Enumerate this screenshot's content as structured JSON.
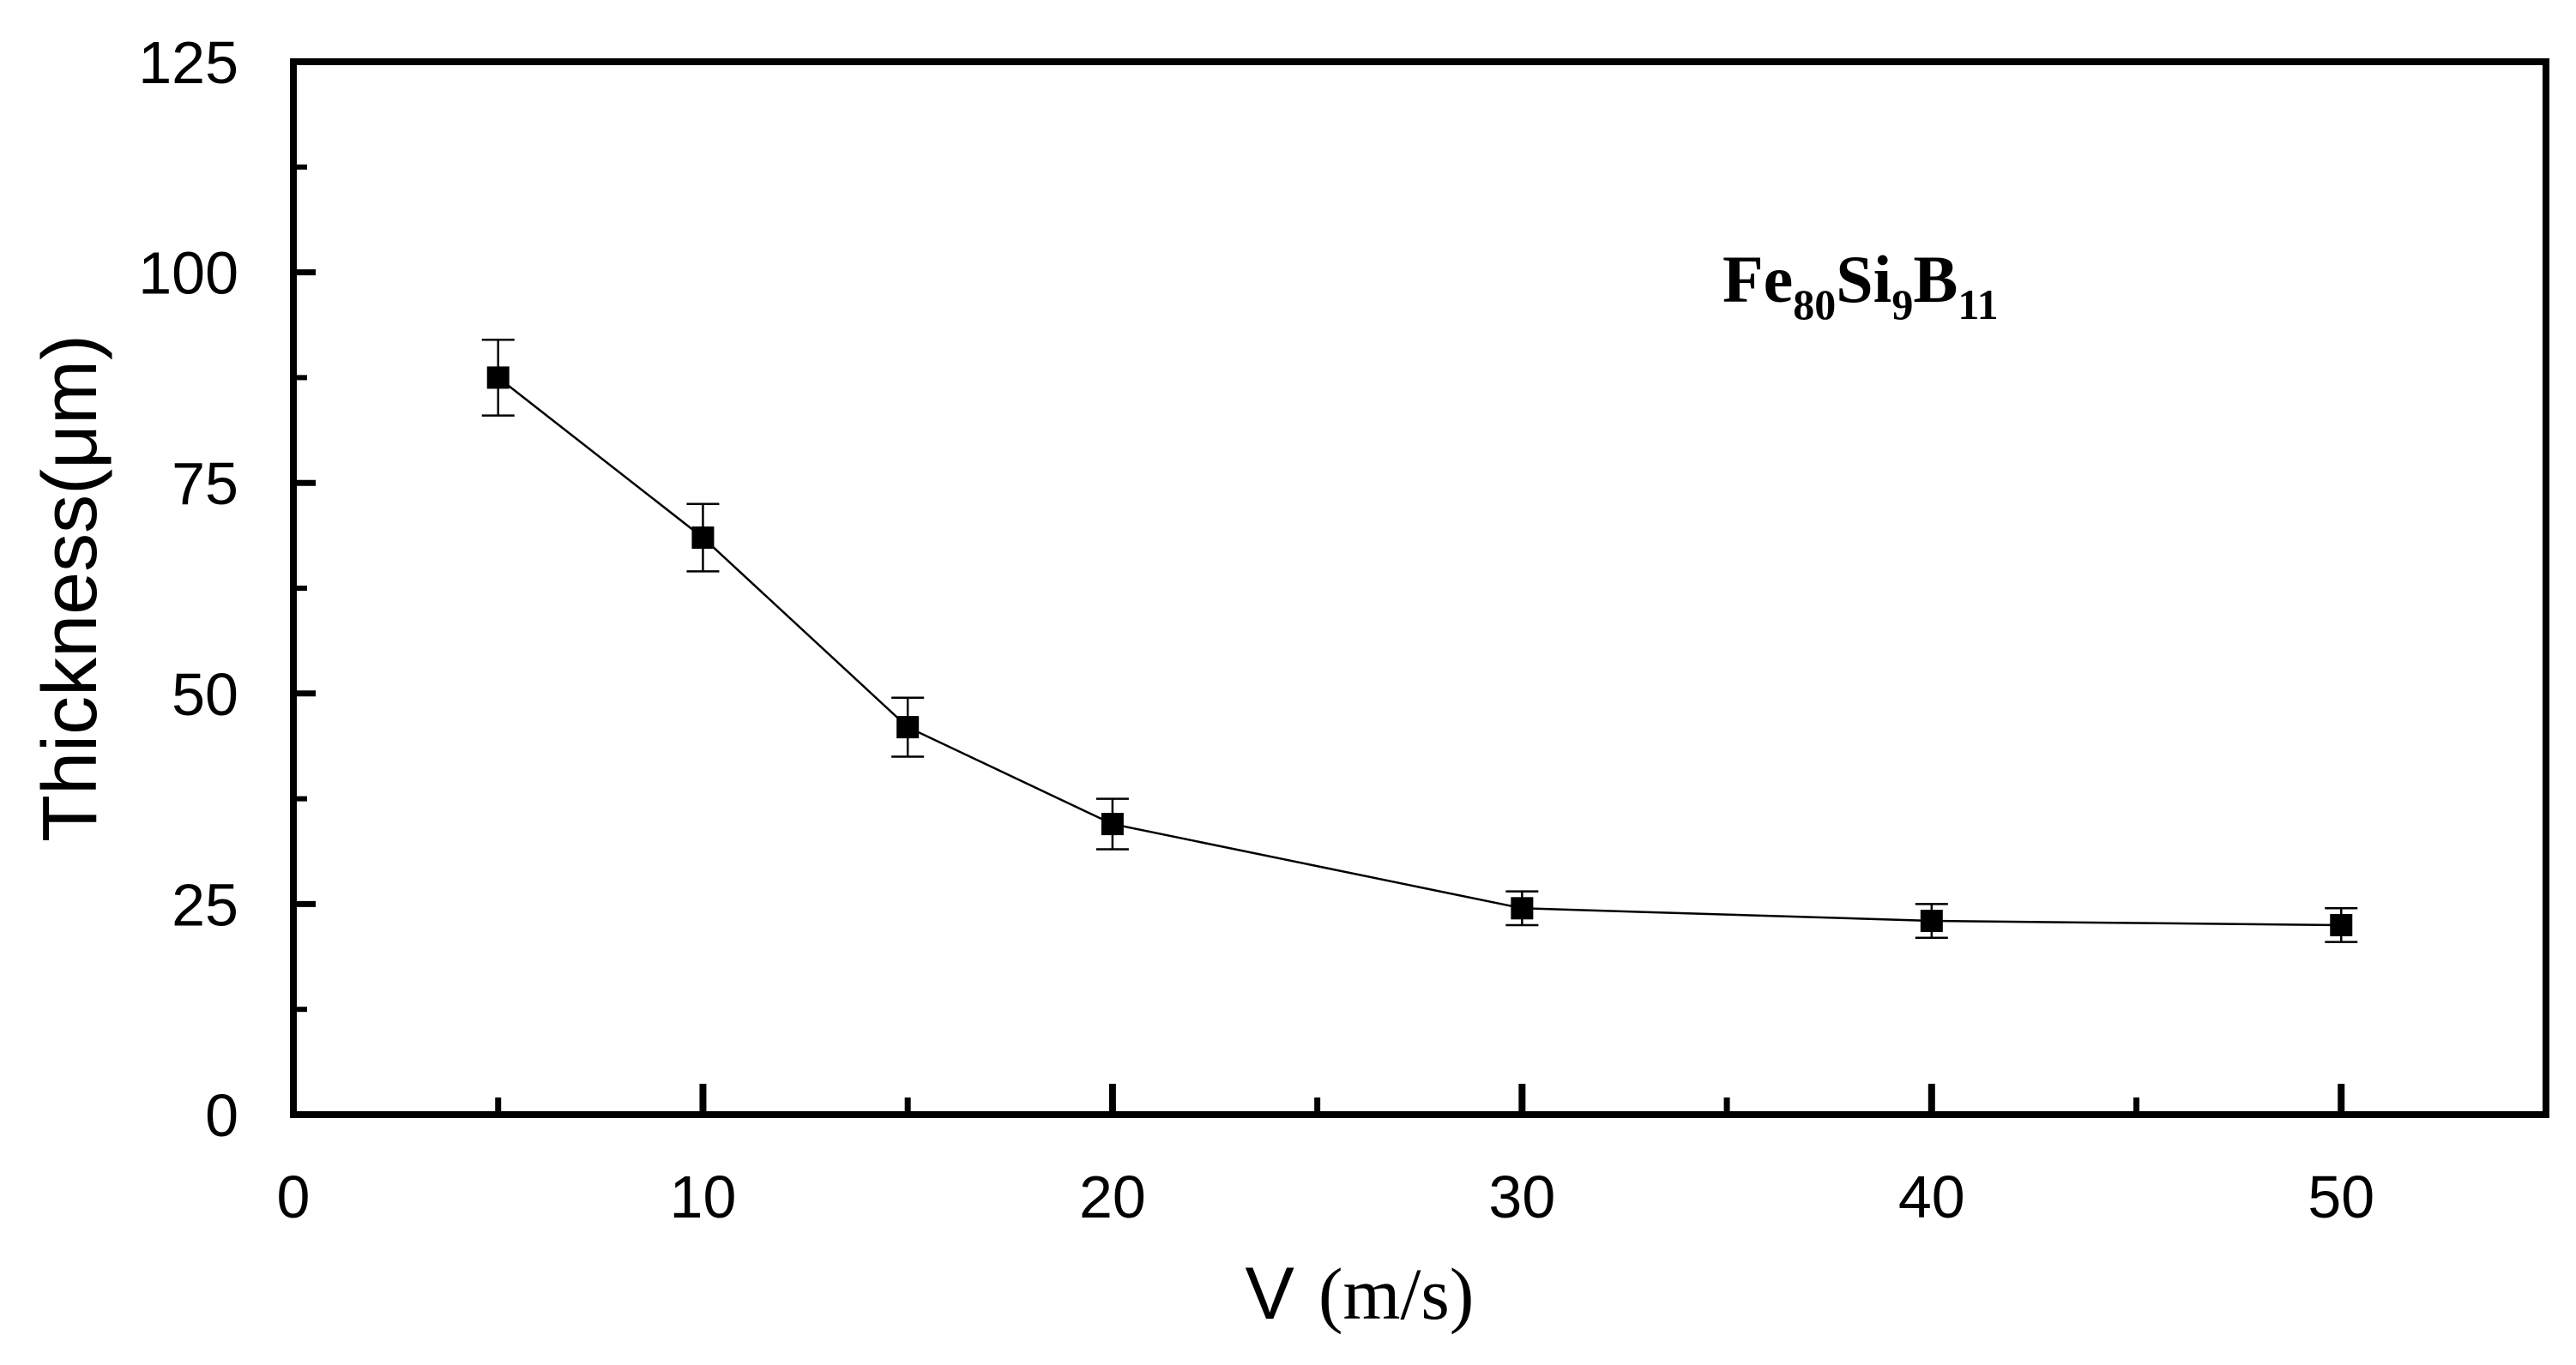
{
  "chart_data": {
    "type": "line",
    "title": "",
    "xlabel": "V",
    "xlabel_unit": "(m/s)",
    "ylabel": "Thickness(μm)",
    "xlim": [
      0,
      55
    ],
    "ylim": [
      0,
      125
    ],
    "x_ticks": [
      0,
      10,
      20,
      30,
      40,
      50
    ],
    "y_ticks": [
      0,
      25,
      50,
      75,
      100,
      125
    ],
    "x_tick_labels": [
      "0",
      "10",
      "20",
      "30",
      "40",
      "50"
    ],
    "y_tick_labels": [
      "0",
      "25",
      "50",
      "75",
      "100",
      "125"
    ],
    "grid": false,
    "annotation": {
      "parts": [
        {
          "text": "Fe",
          "sub": false
        },
        {
          "text": "80",
          "sub": true
        },
        {
          "text": "Si",
          "sub": false
        },
        {
          "text": "9",
          "sub": true
        },
        {
          "text": "B",
          "sub": false
        },
        {
          "text": "11",
          "sub": true
        }
      ]
    },
    "series": [
      {
        "name": "Fe80Si9B11",
        "x": [
          5,
          10,
          15,
          20,
          30,
          40,
          50
        ],
        "y": [
          87.5,
          68.5,
          46,
          34.5,
          24.5,
          23,
          22.5
        ],
        "yerr": [
          4.5,
          4,
          3.5,
          3,
          2,
          2,
          2
        ]
      }
    ]
  }
}
